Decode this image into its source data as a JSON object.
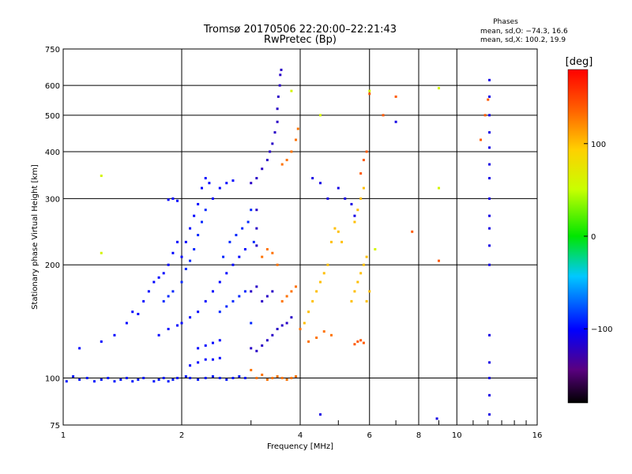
{
  "chart_data": {
    "type": "scatter",
    "title": "Tromsø 20170506 22:20:00–22:21:43",
    "subtitle": "RwPretec (Bp)",
    "xlabel": "Frequency [MHz]",
    "ylabel": "Stationary phase Virtual Height [km]",
    "xscale": "log",
    "yscale": "log",
    "xlim": [
      1,
      16
    ],
    "ylim": [
      75,
      750
    ],
    "xticks": [
      1,
      2,
      4,
      6,
      8,
      10,
      16
    ],
    "xtick_labels": [
      "1",
      "2",
      "4",
      "6",
      "8",
      "10",
      "16"
    ],
    "yticks": [
      75,
      100,
      200,
      300,
      400,
      500,
      600,
      750
    ],
    "ytick_labels": [
      "75",
      "100",
      "200",
      "300",
      "400",
      "500",
      "600",
      "750"
    ],
    "grid": true,
    "phases_box": {
      "heading": "Phases",
      "line1": "mean, sd,O: −74.3, 16.6",
      "line2": "mean, sd,X: 100.2, 19.9"
    },
    "colorbar": {
      "label": "[deg]",
      "range": [
        -180,
        180
      ],
      "ticks": [
        100,
        0,
        -100
      ],
      "tick_labels": [
        "100",
        "0",
        "−100"
      ],
      "colormap": "rainbow (black → purple → blue → cyan → green → yellow → orange → red)"
    },
    "series": [
      {
        "color_phase": -95,
        "points": [
          [
            1.02,
            98
          ],
          [
            1.06,
            101
          ],
          [
            1.1,
            99
          ],
          [
            1.15,
            100
          ],
          [
            1.2,
            98
          ],
          [
            1.25,
            99
          ],
          [
            1.3,
            100
          ],
          [
            1.35,
            98
          ],
          [
            1.4,
            99
          ],
          [
            1.45,
            100
          ],
          [
            1.5,
            98
          ],
          [
            1.55,
            99
          ],
          [
            1.6,
            100
          ],
          [
            1.7,
            98
          ],
          [
            1.75,
            99
          ],
          [
            1.8,
            100
          ],
          [
            1.85,
            98
          ],
          [
            1.9,
            99
          ],
          [
            1.95,
            100
          ],
          [
            2.05,
            101
          ],
          [
            2.1,
            100
          ],
          [
            2.2,
            99
          ],
          [
            2.3,
            100
          ],
          [
            2.4,
            101
          ],
          [
            2.5,
            100
          ],
          [
            2.6,
            99
          ],
          [
            2.7,
            100
          ],
          [
            2.8,
            101
          ],
          [
            2.9,
            100
          ]
        ]
      },
      {
        "color_phase": -100,
        "points": [
          [
            1.1,
            120
          ],
          [
            1.25,
            125
          ],
          [
            1.35,
            130
          ],
          [
            1.45,
            140
          ],
          [
            1.5,
            150
          ],
          [
            1.55,
            148
          ],
          [
            1.6,
            160
          ],
          [
            1.65,
            170
          ],
          [
            1.7,
            180
          ],
          [
            1.75,
            185
          ],
          [
            1.8,
            190
          ],
          [
            1.85,
            200
          ],
          [
            1.9,
            215
          ],
          [
            1.95,
            230
          ],
          [
            1.85,
            298
          ],
          [
            1.9,
            300
          ],
          [
            1.95,
            296
          ],
          [
            2.0,
            210
          ],
          [
            2.05,
            230
          ],
          [
            2.1,
            250
          ],
          [
            2.15,
            270
          ],
          [
            2.2,
            290
          ],
          [
            2.25,
            320
          ],
          [
            2.3,
            340
          ],
          [
            2.35,
            330
          ],
          [
            2.4,
            300
          ],
          [
            2.5,
            320
          ],
          [
            2.6,
            330
          ],
          [
            2.7,
            335
          ],
          [
            2.2,
            150
          ],
          [
            2.3,
            160
          ],
          [
            2.4,
            170
          ],
          [
            2.5,
            180
          ],
          [
            2.6,
            190
          ],
          [
            2.7,
            200
          ],
          [
            2.8,
            210
          ],
          [
            2.9,
            220
          ],
          [
            2.0,
            140
          ],
          [
            2.1,
            145
          ],
          [
            1.75,
            130
          ],
          [
            1.85,
            135
          ],
          [
            1.95,
            138
          ],
          [
            2.2,
            120
          ],
          [
            2.3,
            122
          ],
          [
            2.4,
            124
          ],
          [
            2.5,
            126
          ],
          [
            2.1,
            108
          ],
          [
            2.2,
            110
          ],
          [
            2.3,
            112
          ],
          [
            2.4,
            112
          ],
          [
            2.5,
            113
          ]
        ]
      },
      {
        "color_phase": -90,
        "points": [
          [
            1.9,
            170
          ],
          [
            2.0,
            180
          ],
          [
            2.05,
            195
          ],
          [
            2.1,
            205
          ],
          [
            2.15,
            220
          ],
          [
            2.2,
            240
          ],
          [
            2.25,
            260
          ],
          [
            2.3,
            280
          ],
          [
            1.8,
            160
          ],
          [
            1.85,
            165
          ],
          [
            2.5,
            150
          ],
          [
            2.6,
            155
          ],
          [
            2.7,
            160
          ],
          [
            2.8,
            165
          ],
          [
            2.9,
            170
          ],
          [
            2.55,
            210
          ],
          [
            2.65,
            230
          ],
          [
            2.75,
            240
          ],
          [
            2.85,
            250
          ],
          [
            2.95,
            260
          ],
          [
            3.0,
            280
          ],
          [
            3.05,
            230
          ],
          [
            3.0,
            140
          ]
        ]
      },
      {
        "color_phase": -120,
        "points": [
          [
            3.0,
            330
          ],
          [
            3.1,
            340
          ],
          [
            3.2,
            360
          ],
          [
            3.3,
            380
          ],
          [
            3.35,
            400
          ],
          [
            3.4,
            420
          ],
          [
            3.45,
            450
          ],
          [
            3.5,
            480
          ],
          [
            3.5,
            520
          ],
          [
            3.52,
            560
          ],
          [
            3.55,
            600
          ],
          [
            3.56,
            640
          ],
          [
            3.58,
            660
          ],
          [
            3.0,
            170
          ],
          [
            3.1,
            175
          ],
          [
            3.2,
            160
          ],
          [
            3.3,
            165
          ],
          [
            3.4,
            170
          ],
          [
            3.0,
            120
          ],
          [
            3.1,
            118
          ],
          [
            3.2,
            122
          ],
          [
            3.3,
            126
          ],
          [
            3.4,
            130
          ],
          [
            3.5,
            135
          ],
          [
            3.6,
            138
          ],
          [
            3.7,
            140
          ],
          [
            3.8,
            145
          ],
          [
            3.1,
            225
          ],
          [
            3.1,
            250
          ],
          [
            3.1,
            280
          ]
        ]
      },
      {
        "color_phase": 130,
        "points": [
          [
            3.6,
            370
          ],
          [
            3.7,
            380
          ],
          [
            3.8,
            400
          ],
          [
            3.9,
            430
          ],
          [
            3.95,
            460
          ],
          [
            3.6,
            160
          ],
          [
            3.7,
            165
          ],
          [
            3.8,
            170
          ],
          [
            3.9,
            175
          ],
          [
            3.0,
            105
          ],
          [
            3.1,
            100
          ],
          [
            3.2,
            102
          ],
          [
            3.3,
            99
          ],
          [
            3.4,
            100
          ],
          [
            3.5,
            101
          ],
          [
            3.6,
            100
          ],
          [
            3.7,
            99
          ],
          [
            3.8,
            100
          ],
          [
            3.9,
            101
          ],
          [
            3.2,
            210
          ],
          [
            3.3,
            220
          ],
          [
            3.4,
            215
          ],
          [
            3.5,
            200
          ],
          [
            4.0,
            135
          ],
          [
            4.2,
            125
          ],
          [
            4.4,
            128
          ],
          [
            4.6,
            133
          ],
          [
            4.8,
            130
          ]
        ]
      },
      {
        "color_phase": 100,
        "points": [
          [
            4.9,
            250
          ],
          [
            5.0,
            245
          ],
          [
            5.1,
            230
          ],
          [
            4.8,
            230
          ],
          [
            4.7,
            200
          ],
          [
            4.6,
            190
          ],
          [
            4.5,
            180
          ],
          [
            4.4,
            170
          ],
          [
            4.3,
            160
          ],
          [
            4.2,
            150
          ],
          [
            4.1,
            140
          ],
          [
            5.4,
            160
          ],
          [
            5.5,
            170
          ],
          [
            5.6,
            180
          ],
          [
            5.7,
            190
          ],
          [
            5.8,
            200
          ],
          [
            5.9,
            210
          ],
          [
            5.6,
            280
          ],
          [
            5.7,
            300
          ],
          [
            5.8,
            320
          ],
          [
            5.5,
            260
          ],
          [
            5.9,
            160
          ],
          [
            6.0,
            170
          ]
        ]
      },
      {
        "color_phase": 140,
        "points": [
          [
            5.7,
            350
          ],
          [
            5.8,
            380
          ],
          [
            5.9,
            400
          ],
          [
            5.6,
            125
          ],
          [
            5.7,
            126
          ],
          [
            5.8,
            124
          ],
          [
            5.5,
            123
          ],
          [
            6.0,
            570
          ],
          [
            6.5,
            500
          ],
          [
            7.0,
            560
          ],
          [
            7.7,
            245
          ],
          [
            9.0,
            205
          ],
          [
            11.5,
            430
          ],
          [
            11.8,
            500
          ],
          [
            12.0,
            550
          ]
        ]
      },
      {
        "color_phase": -110,
        "points": [
          [
            12.1,
            620
          ],
          [
            12.1,
            560
          ],
          [
            12.1,
            500
          ],
          [
            12.1,
            450
          ],
          [
            12.1,
            410
          ],
          [
            12.1,
            370
          ],
          [
            12.1,
            340
          ],
          [
            12.1,
            300
          ],
          [
            12.1,
            270
          ],
          [
            12.1,
            250
          ],
          [
            12.1,
            225
          ],
          [
            12.1,
            200
          ],
          [
            12.1,
            130
          ],
          [
            12.1,
            110
          ],
          [
            12.1,
            100
          ],
          [
            12.1,
            90
          ],
          [
            12.1,
            80
          ],
          [
            4.3,
            340
          ],
          [
            4.5,
            330
          ],
          [
            4.7,
            300
          ],
          [
            5.0,
            320
          ],
          [
            5.2,
            300
          ],
          [
            5.4,
            290
          ],
          [
            5.5,
            270
          ],
          [
            7.0,
            480
          ],
          [
            4.5,
            80
          ],
          [
            8.9,
            78
          ]
        ]
      },
      {
        "color_phase": 60,
        "points": [
          [
            1.25,
            345
          ],
          [
            1.25,
            215
          ],
          [
            3.8,
            580
          ],
          [
            4.5,
            500
          ],
          [
            6.0,
            580
          ],
          [
            9.0,
            590
          ],
          [
            9.0,
            320
          ],
          [
            6.2,
            220
          ]
        ]
      }
    ]
  }
}
